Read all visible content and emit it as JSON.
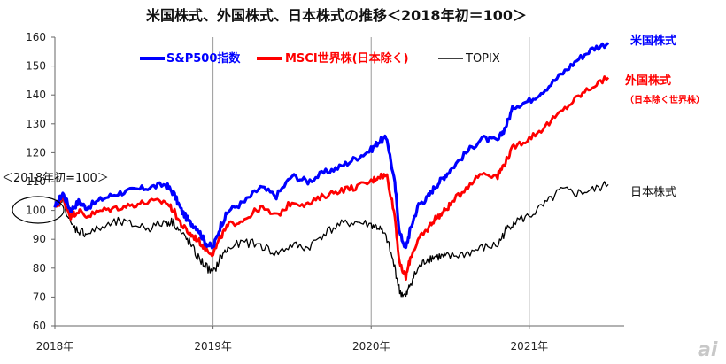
{
  "chart_data": {
    "type": "line",
    "title": "米国株式、外国株式、日本株式の推移＜2018年初＝100＞",
    "xlabel": "",
    "ylabel": "",
    "ylim": [
      60,
      160
    ],
    "y_ticks": [
      "60",
      "70",
      "80",
      "90",
      "100",
      "110",
      "120",
      "130",
      "140",
      "150",
      "160"
    ],
    "x_ticks": [
      "2018年",
      "2019年",
      "2020年",
      "2021年"
    ],
    "x_range": [
      2018.0,
      2021.6
    ],
    "grid": "vertical year lines",
    "legend_position": "top-left",
    "base_note": "＜2018年初=100＞",
    "series": [
      {
        "name": "S&P500指数",
        "side_label": "米国株式",
        "color": "#0000ff",
        "x": [
          2018.0,
          2018.05,
          2018.1,
          2018.15,
          2018.2,
          2018.3,
          2018.4,
          2018.5,
          2018.6,
          2018.7,
          2018.75,
          2018.8,
          2018.85,
          2018.9,
          2018.95,
          2019.0,
          2019.05,
          2019.1,
          2019.2,
          2019.3,
          2019.4,
          2019.5,
          2019.6,
          2019.7,
          2019.8,
          2019.9,
          2020.0,
          2020.05,
          2020.1,
          2020.15,
          2020.18,
          2020.22,
          2020.25,
          2020.3,
          2020.35,
          2020.4,
          2020.45,
          2020.5,
          2020.6,
          2020.7,
          2020.8,
          2020.85,
          2020.9,
          2021.0,
          2021.1,
          2021.2,
          2021.3,
          2021.4,
          2021.5
        ],
        "y": [
          101,
          106,
          100,
          103,
          101,
          104,
          106,
          107,
          108,
          109,
          106,
          100,
          96,
          94,
          89,
          87,
          95,
          100,
          103,
          108,
          105,
          112,
          110,
          113,
          115,
          118,
          121,
          124,
          125,
          109,
          92,
          87,
          94,
          102,
          104,
          108,
          111,
          114,
          120,
          125,
          124,
          129,
          136,
          138,
          142,
          147,
          152,
          156,
          158
        ]
      },
      {
        "name": "MSCI世界株(日本除く)",
        "side_label": "外国株式",
        "side_sub": "（日本除く世界株）",
        "color": "#ff0000",
        "x": [
          2018.0,
          2018.05,
          2018.1,
          2018.15,
          2018.2,
          2018.3,
          2018.4,
          2018.5,
          2018.6,
          2018.7,
          2018.75,
          2018.8,
          2018.85,
          2018.9,
          2018.95,
          2019.0,
          2019.05,
          2019.1,
          2019.2,
          2019.3,
          2019.4,
          2019.5,
          2019.6,
          2019.7,
          2019.8,
          2019.9,
          2020.0,
          2020.05,
          2020.1,
          2020.15,
          2020.18,
          2020.22,
          2020.25,
          2020.3,
          2020.35,
          2020.4,
          2020.45,
          2020.5,
          2020.6,
          2020.7,
          2020.8,
          2020.85,
          2020.9,
          2021.0,
          2021.1,
          2021.2,
          2021.3,
          2021.4,
          2021.5
        ],
        "y": [
          101,
          104,
          98,
          100,
          98,
          100,
          101,
          102,
          103,
          103,
          100,
          95,
          92,
          90,
          87,
          85,
          91,
          95,
          97,
          101,
          98,
          103,
          102,
          105,
          107,
          108,
          110,
          112,
          112,
          98,
          81,
          77,
          84,
          90,
          93,
          97,
          99,
          102,
          108,
          113,
          112,
          117,
          122,
          125,
          129,
          134,
          139,
          143,
          146
        ]
      },
      {
        "name": "TOPIX",
        "side_label": "日本株式",
        "color": "#000000",
        "x": [
          2018.0,
          2018.05,
          2018.1,
          2018.15,
          2018.2,
          2018.3,
          2018.4,
          2018.5,
          2018.6,
          2018.7,
          2018.75,
          2018.8,
          2018.85,
          2018.9,
          2018.95,
          2019.0,
          2019.05,
          2019.1,
          2019.2,
          2019.3,
          2019.4,
          2019.5,
          2019.6,
          2019.7,
          2019.8,
          2019.9,
          2020.0,
          2020.05,
          2020.1,
          2020.15,
          2020.18,
          2020.22,
          2020.25,
          2020.3,
          2020.35,
          2020.4,
          2020.45,
          2020.5,
          2020.6,
          2020.7,
          2020.8,
          2020.85,
          2020.9,
          2021.0,
          2021.1,
          2021.2,
          2021.3,
          2021.4,
          2021.5
        ],
        "y": [
          101,
          104,
          95,
          93,
          92,
          94,
          96,
          95,
          94,
          96,
          96,
          92,
          89,
          84,
          81,
          78,
          84,
          87,
          89,
          88,
          85,
          88,
          87,
          92,
          95,
          96,
          95,
          94,
          90,
          80,
          72,
          70,
          75,
          80,
          83,
          84,
          84,
          84,
          85,
          87,
          88,
          93,
          96,
          98,
          102,
          107,
          106,
          107,
          109
        ]
      }
    ]
  },
  "watermark": "ai"
}
